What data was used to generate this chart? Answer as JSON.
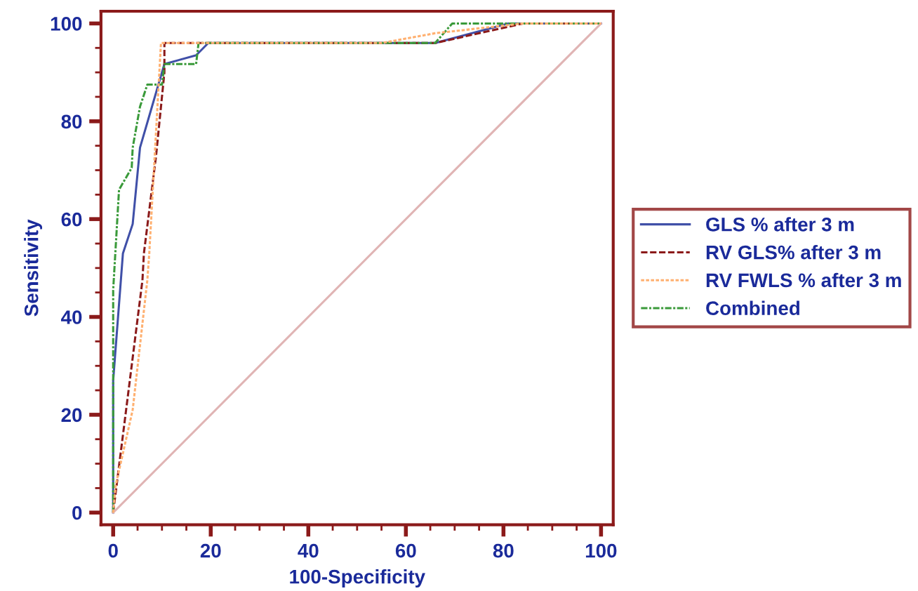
{
  "chart_data": {
    "type": "line",
    "xlabel": "100-Specificity",
    "ylabel": "Sensitivity",
    "xlim": [
      -2.5,
      102.5
    ],
    "ylim": [
      -2.5,
      102.5
    ],
    "xticks": [
      0,
      20,
      40,
      60,
      80,
      100
    ],
    "yticks": [
      0,
      20,
      40,
      60,
      80,
      100
    ],
    "grid": false,
    "legend": "right",
    "marker": "none",
    "series": [
      {
        "name": "GLS % after 3 m",
        "color": "#4050a8",
        "line_style": "solid",
        "x": [
          0,
          0,
          2,
          4,
          5.5,
          10.5,
          17,
          19.5,
          66,
          81,
          100
        ],
        "values": [
          0,
          27,
          53,
          59,
          74.6,
          91.7,
          93.5,
          96,
          96,
          100,
          100
        ]
      },
      {
        "name": "RV GLS% after 3 m",
        "color": "#8b1a1a",
        "line_style": "dashed",
        "x": [
          0,
          6,
          6.3,
          8.8,
          10.5,
          10.5,
          66,
          84,
          100
        ],
        "values": [
          0,
          47.5,
          53,
          73,
          90,
          96,
          96,
          100,
          100
        ]
      },
      {
        "name": "RV FWLS % after 3 m",
        "color": "#ffb070",
        "line_style": "dotted",
        "x": [
          0,
          0.5,
          4,
          7,
          7.4,
          9.8,
          55,
          66,
          84,
          100
        ],
        "values": [
          0,
          5.5,
          21,
          47.5,
          53,
          96,
          96,
          98,
          100,
          100
        ]
      },
      {
        "name": "Combined",
        "color": "#3a9a3a",
        "line_style": "dashdot",
        "x": [
          0,
          0,
          1.2,
          3.8,
          4,
          5.5,
          7,
          10,
          10.5,
          17,
          17.5,
          66,
          69.5,
          100
        ],
        "values": [
          0,
          45.5,
          66,
          70.5,
          74.6,
          83,
          87.5,
          87.5,
          91.7,
          91.7,
          96,
          96,
          100,
          100
        ]
      },
      {
        "color": "#e0b4b4",
        "line_style": "solid",
        "x": [
          0,
          100
        ],
        "values": [
          0,
          100
        ]
      }
    ]
  }
}
